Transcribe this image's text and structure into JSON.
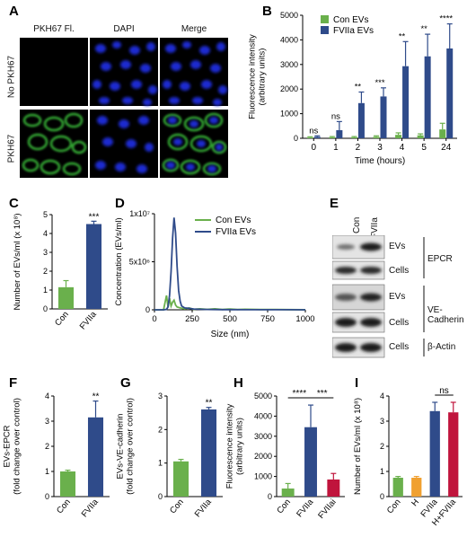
{
  "panels": {
    "A": {
      "letter": "A",
      "columns": [
        "PKH67 Fl.",
        "DAPI",
        "Merge"
      ],
      "rows": [
        "No PKH67",
        "PKH67"
      ]
    },
    "E": {
      "letter": "E",
      "lanes": [
        "Con",
        "FVIIa"
      ],
      "blots": [
        {
          "label": "EVs",
          "group": "EPCR"
        },
        {
          "label": "Cells",
          "group": "EPCR"
        },
        {
          "label": "EVs",
          "group": "VE-Cadherin"
        },
        {
          "label": "Cells",
          "group": "VE-Cadherin"
        },
        {
          "label": "Cells",
          "group": "β-Actin"
        }
      ],
      "groups": [
        "EPCR",
        "VE-Cadherin",
        "β-Actin"
      ]
    }
  },
  "colors": {
    "con_green": "#6ab04c",
    "fviia_blue": "#2f4b8a",
    "fviiai_red": "#c0143c",
    "h_orange": "#f0a030"
  },
  "chart_data": [
    {
      "id": "B",
      "letter": "B",
      "type": "bar",
      "categories": [
        "0",
        "1",
        "2",
        "3",
        "4",
        "5",
        "24"
      ],
      "series": [
        {
          "name": "Con EVs",
          "color": "#6ab04c",
          "values": [
            30,
            40,
            40,
            60,
            140,
            120,
            360
          ],
          "errors": [
            30,
            30,
            30,
            40,
            80,
            60,
            250
          ]
        },
        {
          "name": "FVIIa EVs",
          "color": "#2f4b8a",
          "values": [
            60,
            330,
            1430,
            1700,
            2930,
            3330,
            3650
          ],
          "errors": [
            40,
            350,
            450,
            350,
            1000,
            900,
            1000
          ]
        }
      ],
      "significance": [
        "ns",
        "ns",
        "**",
        "***",
        "**",
        "**",
        "****"
      ],
      "xlabel": "Time (hours)",
      "ylabel": "Fluorescence intensity (arbitrary units)",
      "ylabel_lines": [
        "Fluorescence intensity",
        "(arbitrary units)"
      ],
      "ylim": [
        0,
        5000
      ],
      "yticks": [
        0,
        1000,
        2000,
        3000,
        4000,
        5000
      ],
      "legend": [
        "Con EVs",
        "FVIIa EVs"
      ],
      "legend_position": "top-left"
    },
    {
      "id": "C",
      "letter": "C",
      "type": "bar",
      "categories": [
        "Con",
        "FVIIa"
      ],
      "values": [
        1.15,
        4.5
      ],
      "errors": [
        0.35,
        0.15
      ],
      "colors": [
        "#6ab04c",
        "#2f4b8a"
      ],
      "significance": [
        {
          "text": "***",
          "bar": 1
        }
      ],
      "ylabel": "Number of EVs/ml (x 10⁸)",
      "ylim": [
        0,
        5
      ],
      "yticks": [
        0,
        1,
        2,
        3,
        4,
        5
      ]
    },
    {
      "id": "D",
      "letter": "D",
      "type": "line",
      "series": [
        {
          "name": "Con EVs",
          "color": "#6ab04c",
          "x": [
            0,
            60,
            80,
            90,
            100,
            110,
            120,
            130,
            140,
            150,
            170,
            200,
            230,
            260,
            300,
            350,
            400,
            450,
            500,
            550,
            600,
            700,
            800,
            900,
            1000
          ],
          "y": [
            0,
            0,
            1500000,
            300000,
            1200000,
            400000,
            800000,
            1000000,
            500000,
            300000,
            200000,
            100000,
            200000,
            50000,
            100000,
            50000,
            100000,
            30000,
            80000,
            30000,
            60000,
            30000,
            40000,
            20000,
            10000
          ]
        },
        {
          "name": "FVIIa EVs",
          "color": "#2f4b8a",
          "x": [
            0,
            60,
            80,
            90,
            100,
            110,
            120,
            130,
            140,
            150,
            160,
            170,
            180,
            200,
            230,
            260,
            300,
            350,
            400,
            450,
            500,
            600,
            700,
            800,
            900,
            1000
          ],
          "y": [
            0,
            0,
            50000,
            300000,
            1500000,
            4000000,
            7500000,
            9600000,
            8000000,
            4500000,
            2000000,
            900000,
            400000,
            200000,
            150000,
            80000,
            60000,
            40000,
            30000,
            20000,
            15000,
            10000,
            8000,
            6000,
            5000,
            3000
          ]
        }
      ],
      "xlabel": "Size (nm)",
      "ylabel": "Concentration (EVs/ml)",
      "xlim": [
        0,
        1000
      ],
      "xticks": [
        0,
        250,
        500,
        750,
        1000
      ],
      "ylim": [
        0,
        10000000
      ],
      "yticks": [
        0,
        5000000,
        10000000
      ],
      "ytick_labels": [
        "0",
        "5x10⁶",
        "1x10⁷"
      ],
      "legend": [
        "Con EVs",
        "FVIIa EVs"
      ],
      "legend_position": "top-right"
    },
    {
      "id": "F",
      "letter": "F",
      "type": "bar",
      "categories": [
        "Con",
        "FVIIa"
      ],
      "values": [
        1.0,
        3.15
      ],
      "errors": [
        0.05,
        0.65
      ],
      "colors": [
        "#6ab04c",
        "#2f4b8a"
      ],
      "significance": [
        {
          "text": "**",
          "bar": 1
        }
      ],
      "ylabel": "EVs-EPCR (fold change over control)",
      "ylabel_lines": [
        "EVs-EPCR",
        "(fold change over control)"
      ],
      "ylim": [
        0,
        4
      ],
      "yticks": [
        0,
        1,
        2,
        3,
        4
      ]
    },
    {
      "id": "G",
      "letter": "G",
      "type": "bar",
      "categories": [
        "Con",
        "FVIIa"
      ],
      "values": [
        1.05,
        2.6
      ],
      "errors": [
        0.06,
        0.06
      ],
      "colors": [
        "#6ab04c",
        "#2f4b8a"
      ],
      "significance": [
        {
          "text": "**",
          "bar": 1
        }
      ],
      "ylabel": "EVs-VE-cadherin (fold change over control)",
      "ylabel_lines": [
        "EVs-VE-cadherin",
        "(fold change over control)"
      ],
      "ylim": [
        0,
        3
      ],
      "yticks": [
        0,
        1,
        2,
        3
      ]
    },
    {
      "id": "H",
      "letter": "H",
      "type": "bar",
      "categories": [
        "Con",
        "FVIIa",
        "FVIIai"
      ],
      "values": [
        400,
        3450,
        850
      ],
      "errors": [
        250,
        1100,
        300
      ],
      "colors": [
        "#6ab04c",
        "#2f4b8a",
        "#c0143c"
      ],
      "brackets": [
        {
          "from": 0,
          "to": 1,
          "text": "****"
        },
        {
          "from": 1,
          "to": 2,
          "text": "***"
        }
      ],
      "ylabel": "Fluorescence intensity (arbitrary units)",
      "ylabel_lines": [
        "Fluorescence intensity",
        "(arbitrary units)"
      ],
      "ylim": [
        0,
        5000
      ],
      "yticks": [
        0,
        1000,
        2000,
        3000,
        4000,
        5000
      ]
    },
    {
      "id": "I",
      "letter": "I",
      "type": "bar",
      "categories": [
        "Con",
        "H",
        "FVIIa",
        "H+FVIIa"
      ],
      "values": [
        0.75,
        0.75,
        3.4,
        3.35
      ],
      "errors": [
        0.05,
        0.05,
        0.35,
        0.4
      ],
      "colors": [
        "#6ab04c",
        "#f0a030",
        "#2f4b8a",
        "#c0143c"
      ],
      "brackets": [
        {
          "from": 2,
          "to": 3,
          "text": "ns"
        }
      ],
      "ylabel": "Number of EVs/ml (x 10⁸)",
      "ylim": [
        0,
        4
      ],
      "yticks": [
        0,
        1,
        2,
        3,
        4
      ]
    }
  ]
}
